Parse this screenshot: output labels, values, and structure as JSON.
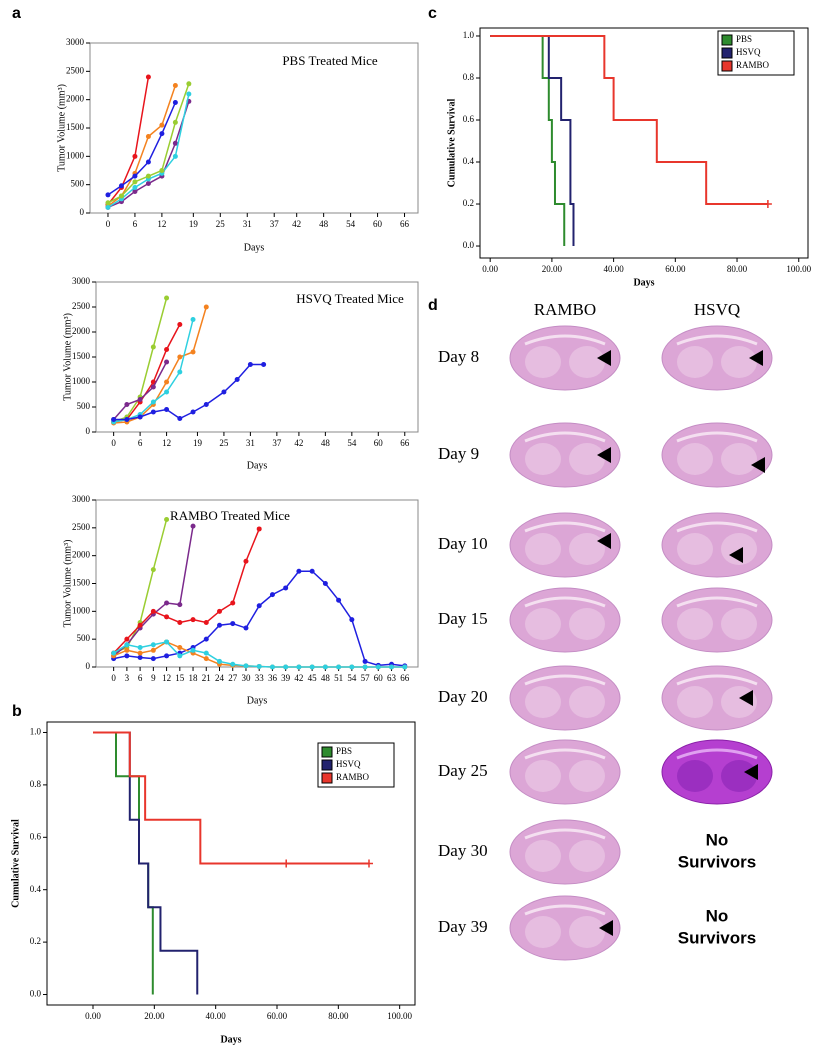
{
  "panel_labels": [
    "a",
    "b",
    "c",
    "d"
  ],
  "chart_data": [
    {
      "type": "line",
      "title": "PBS Treated Mice",
      "x_label": "Days",
      "y_label": "Tumor Volume (mm³)",
      "xlim": [
        -4,
        69
      ],
      "xticks": [
        0,
        6,
        12,
        19,
        25,
        31,
        37,
        42,
        48,
        54,
        60,
        66
      ],
      "ylim": [
        0,
        3000
      ],
      "yticks": [
        0,
        500,
        1000,
        1500,
        2000,
        2500,
        3000
      ],
      "series": [
        {
          "color": "#e8141c",
          "x": [
            0,
            3,
            6,
            9
          ],
          "values": [
            150,
            450,
            1000,
            2400
          ]
        },
        {
          "color": "#f4821f",
          "x": [
            0,
            3,
            6,
            9,
            12,
            15
          ],
          "values": [
            120,
            300,
            700,
            1350,
            1550,
            2250
          ]
        },
        {
          "color": "#1f1fe0",
          "x": [
            0,
            3,
            6,
            9,
            12,
            15
          ],
          "values": [
            320,
            480,
            650,
            900,
            1400,
            1950
          ]
        },
        {
          "color": "#7b2a8c",
          "x": [
            0,
            3,
            6,
            9,
            12,
            15,
            18
          ],
          "values": [
            100,
            200,
            380,
            520,
            650,
            1230,
            1970
          ]
        },
        {
          "color": "#2ed0e0",
          "x": [
            0,
            3,
            6,
            9,
            12,
            15,
            18
          ],
          "values": [
            100,
            250,
            450,
            600,
            700,
            1000,
            2100
          ]
        },
        {
          "color": "#9acd32",
          "x": [
            0,
            3,
            6,
            9,
            12,
            15,
            18
          ],
          "values": [
            180,
            300,
            550,
            650,
            750,
            1600,
            2280
          ]
        }
      ]
    },
    {
      "type": "line",
      "title": "HSVQ Treated Mice",
      "x_label": "Days",
      "y_label": "Tumor Volume (mm³)",
      "xlim": [
        -4,
        69
      ],
      "xticks": [
        0,
        6,
        12,
        19,
        25,
        31,
        37,
        42,
        48,
        54,
        60,
        66
      ],
      "ylim": [
        0,
        3000
      ],
      "yticks": [
        0,
        500,
        1000,
        1500,
        2000,
        2500,
        3000
      ],
      "series": [
        {
          "color": "#9acd32",
          "x": [
            0,
            3,
            6,
            9,
            12
          ],
          "values": [
            200,
            300,
            700,
            1700,
            2680
          ]
        },
        {
          "color": "#e8141c",
          "x": [
            0,
            3,
            6,
            9,
            12,
            15
          ],
          "values": [
            200,
            250,
            600,
            1000,
            1650,
            2150
          ]
        },
        {
          "color": "#f4821f",
          "x": [
            0,
            3,
            6,
            9,
            12,
            15,
            18,
            21
          ],
          "values": [
            180,
            200,
            300,
            550,
            1000,
            1500,
            1600,
            2500
          ]
        },
        {
          "color": "#7b2a8c",
          "x": [
            0,
            3,
            6,
            9,
            12
          ],
          "values": [
            250,
            550,
            650,
            900,
            1400
          ]
        },
        {
          "color": "#2ed0e0",
          "x": [
            0,
            3,
            6,
            9,
            12,
            15,
            18
          ],
          "values": [
            200,
            250,
            350,
            600,
            800,
            1200,
            2250
          ]
        },
        {
          "color": "#1f1fe0",
          "x": [
            0,
            3,
            6,
            9,
            12,
            15,
            18,
            21,
            25,
            28,
            31,
            34
          ],
          "values": [
            250,
            250,
            300,
            400,
            450,
            270,
            400,
            550,
            800,
            1050,
            1350,
            1350
          ]
        }
      ]
    },
    {
      "type": "line",
      "title": "RAMBO Treated Mice",
      "x_label": "Days",
      "y_label": "Tumor Volume (mm³)",
      "xlim": [
        -4,
        69
      ],
      "xticks": [
        0,
        3,
        6,
        9,
        12,
        15,
        18,
        21,
        24,
        27,
        30,
        33,
        36,
        39,
        42,
        45,
        48,
        51,
        54,
        57,
        60,
        63,
        66
      ],
      "ylim": [
        0,
        3000
      ],
      "yticks": [
        0,
        500,
        1000,
        1500,
        2000,
        2500,
        3000
      ],
      "series": [
        {
          "color": "#9acd32",
          "x": [
            0,
            3,
            6,
            9,
            12
          ],
          "values": [
            250,
            350,
            800,
            1750,
            2650
          ]
        },
        {
          "color": "#7b2a8c",
          "x": [
            0,
            3,
            6,
            9,
            12,
            15,
            18
          ],
          "values": [
            200,
            400,
            700,
            950,
            1150,
            1120,
            2530
          ]
        },
        {
          "color": "#e8141c",
          "x": [
            0,
            3,
            6,
            9,
            12,
            15,
            18,
            21,
            24,
            27,
            30,
            33
          ],
          "values": [
            250,
            500,
            750,
            1000,
            900,
            800,
            850,
            800,
            1000,
            1150,
            1900,
            2480
          ]
        },
        {
          "color": "#1f1fe0",
          "x": [
            0,
            3,
            6,
            9,
            12,
            15,
            18,
            21,
            24,
            27,
            30,
            33,
            36,
            39,
            42,
            45,
            48,
            51,
            54,
            57,
            60,
            63,
            66
          ],
          "values": [
            150,
            200,
            170,
            150,
            200,
            250,
            350,
            500,
            750,
            780,
            700,
            1100,
            1300,
            1420,
            1720,
            1720,
            1500,
            1200,
            850,
            100,
            30,
            50,
            20
          ]
        },
        {
          "color": "#f4821f",
          "x": [
            0,
            3,
            6,
            9,
            12,
            15,
            18,
            21,
            24,
            27,
            30,
            33,
            36,
            39,
            42,
            45,
            48,
            51,
            54,
            57,
            60,
            63,
            66
          ],
          "values": [
            200,
            300,
            250,
            300,
            450,
            350,
            250,
            150,
            50,
            30,
            20,
            10,
            0,
            0,
            0,
            0,
            0,
            0,
            0,
            0,
            0,
            0,
            0
          ]
        },
        {
          "color": "#2ed0e0",
          "x": [
            0,
            3,
            6,
            9,
            12,
            15,
            18,
            21,
            24,
            27,
            30,
            33,
            36,
            39,
            42,
            45,
            48,
            51,
            54,
            57,
            60,
            63,
            66
          ],
          "values": [
            250,
            400,
            350,
            400,
            450,
            200,
            300,
            250,
            100,
            50,
            20,
            10,
            0,
            0,
            0,
            0,
            0,
            0,
            0,
            0,
            0,
            0,
            0
          ]
        }
      ]
    },
    {
      "type": "step",
      "x_label": "Days",
      "y_label": "Cumulative Survival",
      "xlim": [
        -15,
        105
      ],
      "xticks": [
        {
          "value": 0,
          "label": "0.00"
        },
        {
          "value": 20,
          "label": "20.00"
        },
        {
          "value": 40,
          "label": "40.00"
        },
        {
          "value": 60,
          "label": "60.00"
        },
        {
          "value": 80,
          "label": "80.00"
        },
        {
          "value": 100,
          "label": "100.00"
        }
      ],
      "ylim": [
        -0.04,
        1.04
      ],
      "yticks": [
        {
          "value": 0,
          "label": "0.0"
        },
        {
          "value": 0.2,
          "label": "0.2"
        },
        {
          "value": 0.4,
          "label": "0.4"
        },
        {
          "value": 0.6,
          "label": "0.6"
        },
        {
          "value": 0.8,
          "label": "0.8"
        },
        {
          "value": 1,
          "label": "1.0"
        }
      ],
      "series": [
        {
          "name": "PBS",
          "color": "#2e8b2e",
          "x": [
            0,
            7.5,
            15,
            18,
            19.5
          ],
          "values": [
            1,
            0.833,
            0.5,
            0.333,
            0
          ]
        },
        {
          "name": "HSVQ",
          "color": "#22226e",
          "x": [
            0,
            12,
            15,
            18,
            22,
            34
          ],
          "values": [
            1,
            0.667,
            0.5,
            0.333,
            0.167,
            0
          ]
        },
        {
          "name": "RAMBO",
          "color": "#e8362c",
          "x": [
            0,
            12,
            17,
            35,
            90
          ],
          "values": [
            1,
            0.833,
            0.667,
            0.5,
            0.5
          ],
          "censored": {
            "x": [
              63,
              90
            ],
            "values": [
              0.5,
              0.5
            ]
          }
        }
      ]
    },
    {
      "type": "step",
      "x_label": "Days",
      "y_label": "Cumulative Survival",
      "xlim": [
        -3.3,
        103
      ],
      "xticks": [
        {
          "value": 0,
          "label": "0.00"
        },
        {
          "value": 20,
          "label": "20.00"
        },
        {
          "value": 40,
          "label": "40.00"
        },
        {
          "value": 60,
          "label": "60.00"
        },
        {
          "value": 80,
          "label": "80.00"
        },
        {
          "value": 100,
          "label": "100.00"
        }
      ],
      "ylim": [
        -0.057,
        1.038
      ],
      "yticks": [
        {
          "value": 0,
          "label": "0.0"
        },
        {
          "value": 0.2,
          "label": "0.2"
        },
        {
          "value": 0.4,
          "label": "0.4"
        },
        {
          "value": 0.6,
          "label": "0.6"
        },
        {
          "value": 0.8,
          "label": "0.8"
        },
        {
          "value": 1,
          "label": "1.0"
        }
      ],
      "series": [
        {
          "name": "PBS",
          "color": "#2e8b2e",
          "x": [
            0,
            17,
            19,
            20,
            21,
            24
          ],
          "values": [
            1,
            0.8,
            0.6,
            0.4,
            0.2,
            0
          ]
        },
        {
          "name": "HSVQ",
          "color": "#22226e",
          "x": [
            0,
            19,
            23,
            26,
            27
          ],
          "values": [
            1,
            0.8,
            0.6,
            0.2,
            0
          ]
        },
        {
          "name": "RAMBO",
          "color": "#e8362c",
          "x": [
            0,
            37,
            40,
            54,
            70,
            90
          ],
          "values": [
            1,
            0.8,
            0.6,
            0.4,
            0.2,
            0.2
          ],
          "censored": {
            "x": [
              90
            ],
            "values": [
              0.2
            ]
          }
        }
      ]
    }
  ],
  "panel_d": {
    "columns": [
      "RAMBO",
      "HSVQ"
    ],
    "rows": [
      {
        "label": "Day 8"
      },
      {
        "label": "Day 9"
      },
      {
        "label": "Day 10"
      },
      {
        "label": "Day 15"
      },
      {
        "label": "Day 20"
      },
      {
        "label": "Day 25"
      },
      {
        "label": "Day 30",
        "hsvq_text": [
          "No",
          "Survivors"
        ]
      },
      {
        "label": "Day 39",
        "hsvq_text": [
          "No",
          "Survivors"
        ]
      }
    ]
  }
}
